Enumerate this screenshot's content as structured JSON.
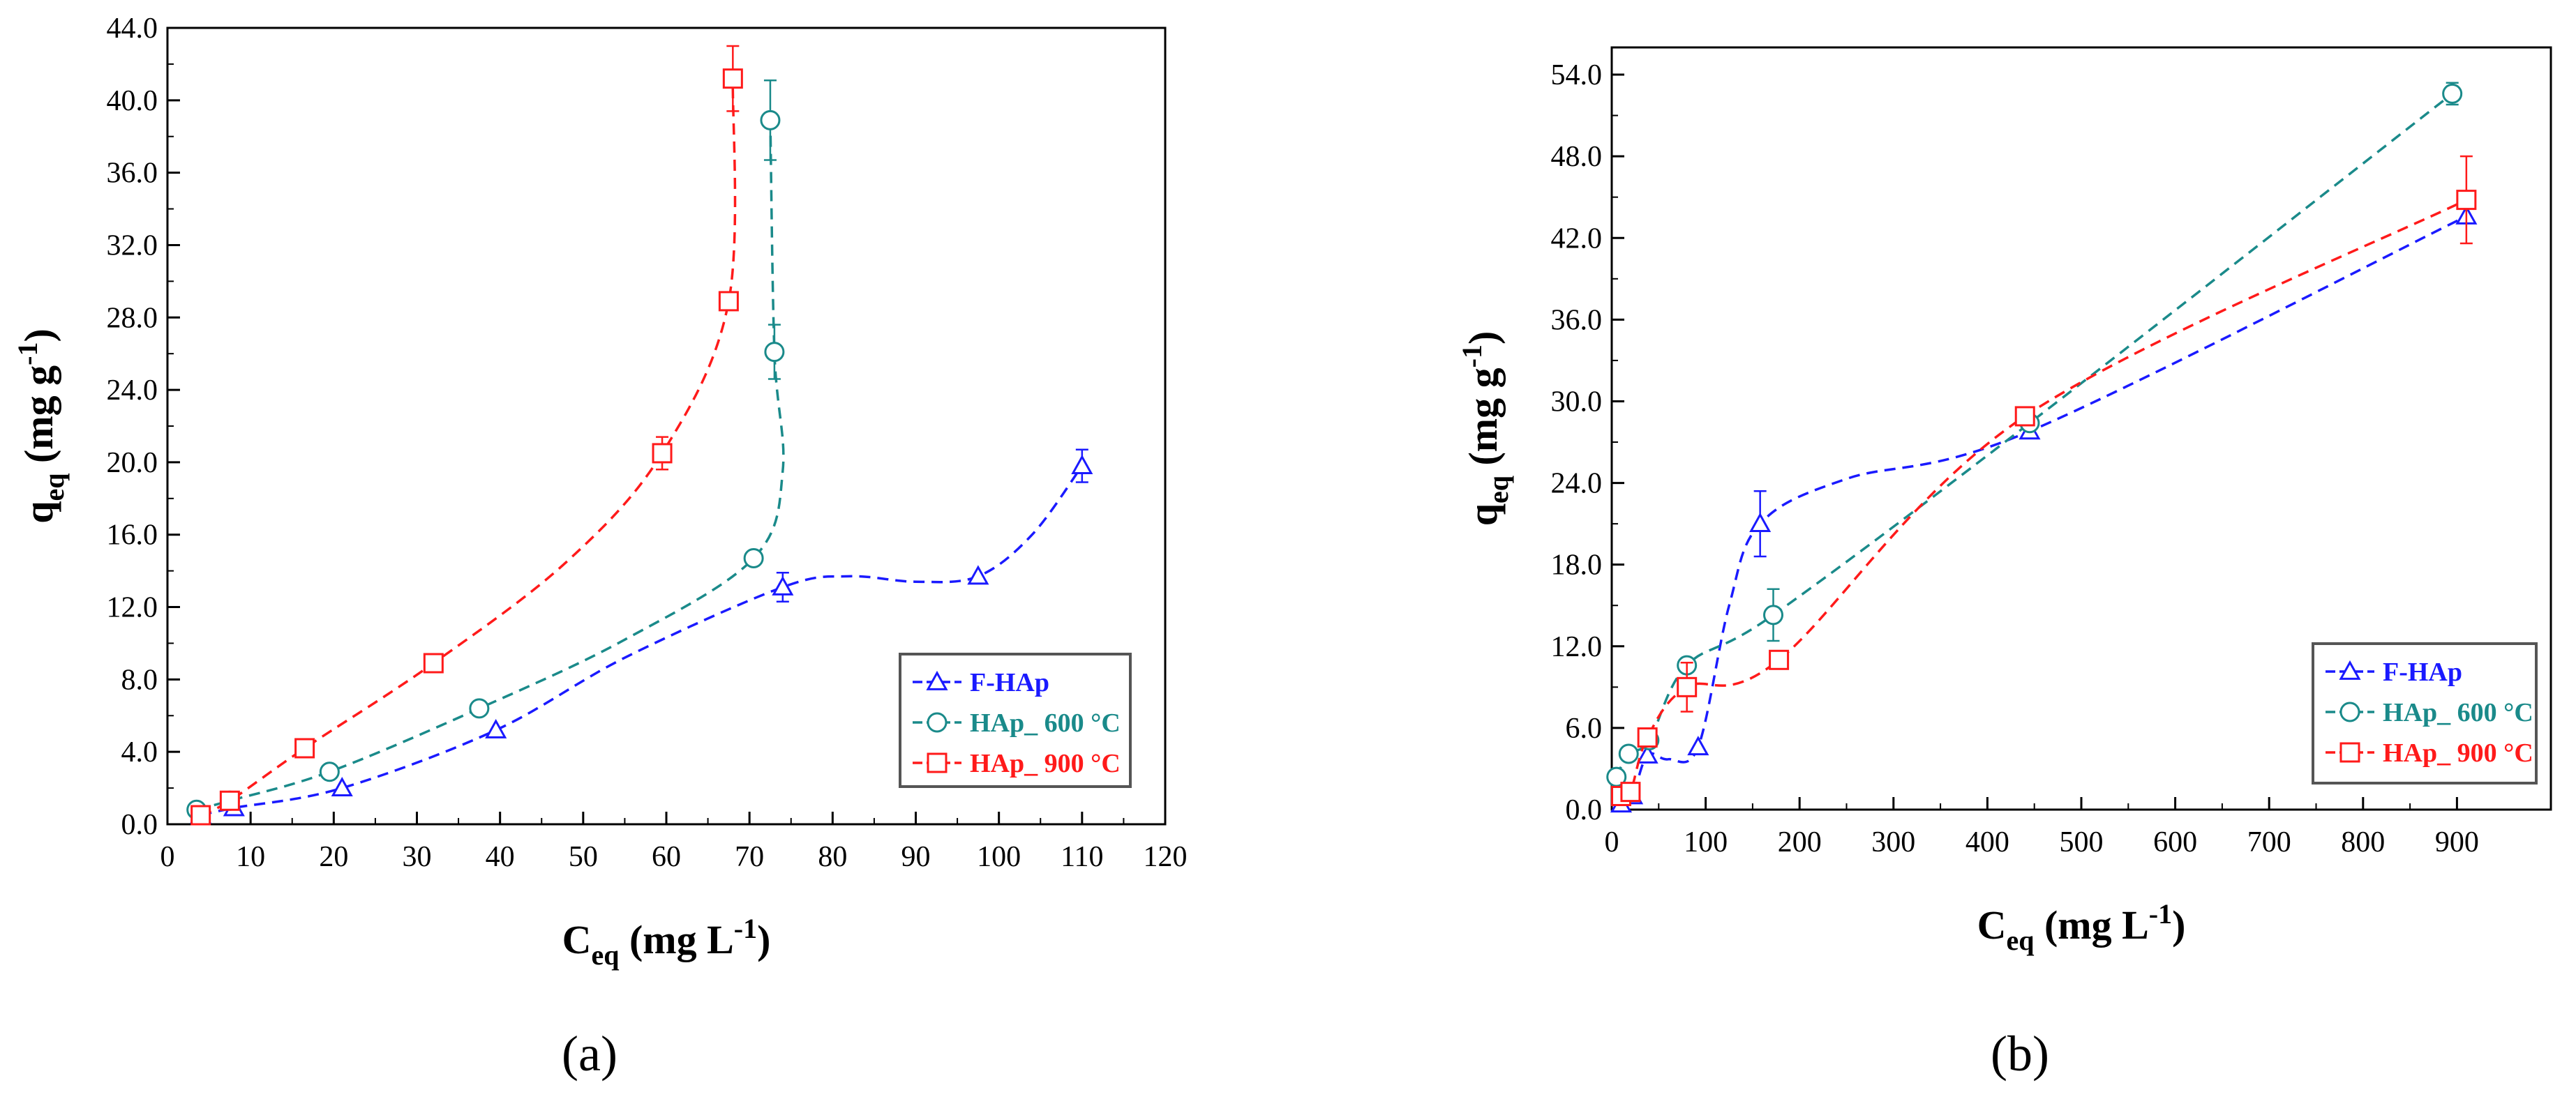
{
  "figure": {
    "panel_labels": [
      "(a)",
      "(b)"
    ]
  },
  "chart_data": [
    {
      "type": "scatter",
      "panel": "(a)",
      "xlabel": {
        "main": "C",
        "sub": "eq",
        "rest": " (mg L",
        "sup": "-1",
        "close": ")"
      },
      "ylabel": {
        "main": "q",
        "sub": "eq",
        "rest": " (mg g",
        "sup": "-1",
        "close": ")"
      },
      "xlim": [
        0,
        120
      ],
      "ylim": [
        0,
        44
      ],
      "xticks": [
        0,
        10,
        20,
        30,
        40,
        50,
        60,
        70,
        80,
        90,
        100,
        110,
        120
      ],
      "xtick_labels": [
        "0",
        "10",
        "20",
        "30",
        "40",
        "50",
        "60",
        "70",
        "80",
        "90",
        "100",
        "110",
        "120"
      ],
      "yticks": [
        0,
        4,
        8,
        12,
        16,
        20,
        24,
        28,
        32,
        36,
        40,
        44
      ],
      "ytick_labels": [
        "0.0",
        "4.0",
        "8.0",
        "12.0",
        "16.0",
        "20.0",
        "24.0",
        "28.0",
        "32.0",
        "36.0",
        "40.0",
        "44.0"
      ],
      "legend_position": "lower-right",
      "series": [
        {
          "name": "F-HAp",
          "color": "#1a1aff",
          "marker": "triangle",
          "x": [
            4,
            8,
            21,
            39.5,
            74,
            97.5,
            110
          ],
          "y": [
            0.5,
            0.9,
            2.0,
            5.2,
            13.1,
            13.7,
            19.8
          ],
          "err": [
            0,
            0,
            0,
            0,
            0.8,
            0,
            0.9
          ],
          "curve_x": [
            4,
            8,
            21,
            39.5,
            55,
            74,
            82,
            90,
            97.5,
            104,
            110
          ],
          "curve_y": [
            0.5,
            0.9,
            2.0,
            5.2,
            9.2,
            13.1,
            13.7,
            13.4,
            13.7,
            16.0,
            19.8
          ]
        },
        {
          "name": "HAp_ 600 °C",
          "color": "#1a8a8a",
          "marker": "circle",
          "x": [
            3.5,
            7.5,
            19.5,
            37.5,
            70.5,
            73,
            72.5
          ],
          "y": [
            0.8,
            1.3,
            2.9,
            6.4,
            14.7,
            26.1,
            38.9
          ],
          "err": [
            0,
            0,
            0,
            0,
            0,
            1.5,
            2.2
          ],
          "curve_x": [
            3.5,
            7.5,
            19.5,
            37.5,
            55,
            70.5,
            74,
            73,
            72.5
          ],
          "curve_y": [
            0.8,
            1.3,
            2.9,
            6.4,
            10.2,
            14.7,
            19.5,
            26.1,
            38.9
          ]
        },
        {
          "name": "HAp_ 900 °C",
          "color": "#ff1a1a",
          "marker": "square",
          "x": [
            4,
            7.5,
            16.5,
            32,
            59.5,
            67.5,
            68
          ],
          "y": [
            0.5,
            1.3,
            4.2,
            8.9,
            20.5,
            28.9,
            41.2
          ],
          "err": [
            0,
            0,
            0,
            0,
            0.9,
            0,
            1.8
          ],
          "curve_x": [
            4,
            7.5,
            16.5,
            32,
            48,
            59.5,
            67.5,
            68
          ],
          "curve_y": [
            0.5,
            1.3,
            4.2,
            8.9,
            14.5,
            20.5,
            28.9,
            41.2
          ]
        }
      ]
    },
    {
      "type": "scatter",
      "panel": "(b)",
      "xlabel": {
        "main": "C",
        "sub": "eq",
        "rest": " (mg L",
        "sup": "-1",
        "close": ")"
      },
      "ylabel": {
        "main": "q",
        "sub": "eq",
        "rest": " (mg g",
        "sup": "-1",
        "close": ")"
      },
      "xlim": [
        0,
        1000
      ],
      "ylim": [
        0,
        56
      ],
      "xticks": [
        0,
        100,
        200,
        300,
        400,
        500,
        600,
        700,
        800,
        900
      ],
      "xtick_labels": [
        "0",
        "100",
        "200",
        "300",
        "400",
        "500",
        "600",
        "700",
        "800",
        "900"
      ],
      "yticks": [
        0,
        6,
        12,
        18,
        24,
        30,
        36,
        42,
        48,
        54
      ],
      "ytick_labels": [
        "0.0",
        "6.0",
        "12.0",
        "18.0",
        "24.0",
        "30.0",
        "36.0",
        "42.0",
        "48.0",
        "54.0"
      ],
      "legend_position": "lower-right",
      "series": [
        {
          "name": "F-HAp",
          "color": "#1a1aff",
          "marker": "triangle",
          "x": [
            10,
            22,
            38,
            92,
            158,
            445,
            910
          ],
          "y": [
            0.4,
            1.0,
            4.0,
            4.6,
            21.0,
            27.8,
            43.6
          ],
          "err": [
            0,
            0,
            0,
            0,
            2.4,
            0,
            0
          ],
          "curve_x": [
            10,
            22,
            38,
            60,
            92,
            125,
            158,
            250,
            445,
            910
          ],
          "curve_y": [
            0.4,
            1.0,
            4.0,
            3.7,
            4.6,
            15.0,
            21.0,
            24.3,
            27.8,
            43.6
          ]
        },
        {
          "name": "HAp_ 600 °C",
          "color": "#1a8a8a",
          "marker": "circle",
          "x": [
            5,
            18,
            40,
            80,
            172,
            445,
            895
          ],
          "y": [
            2.4,
            4.1,
            5.1,
            10.6,
            14.3,
            28.4,
            52.6
          ],
          "err": [
            0,
            0,
            0,
            0,
            1.9,
            0,
            0.8
          ],
          "curve_x": [
            5,
            18,
            40,
            80,
            172,
            445,
            895
          ],
          "curve_y": [
            2.4,
            4.1,
            5.1,
            10.6,
            14.3,
            28.4,
            52.6
          ]
        },
        {
          "name": "HAp_ 900 °C",
          "color": "#ff1a1a",
          "marker": "square",
          "x": [
            10,
            20,
            38,
            80,
            178,
            440,
            910
          ],
          "y": [
            1.0,
            1.3,
            5.3,
            9.0,
            11.0,
            28.9,
            44.8
          ],
          "err": [
            0,
            0,
            0,
            1.8,
            0,
            0,
            3.2
          ],
          "curve_x": [
            10,
            20,
            38,
            80,
            178,
            440,
            910
          ],
          "curve_y": [
            1.0,
            1.3,
            5.3,
            9.0,
            11.0,
            28.9,
            44.8
          ]
        }
      ]
    }
  ]
}
